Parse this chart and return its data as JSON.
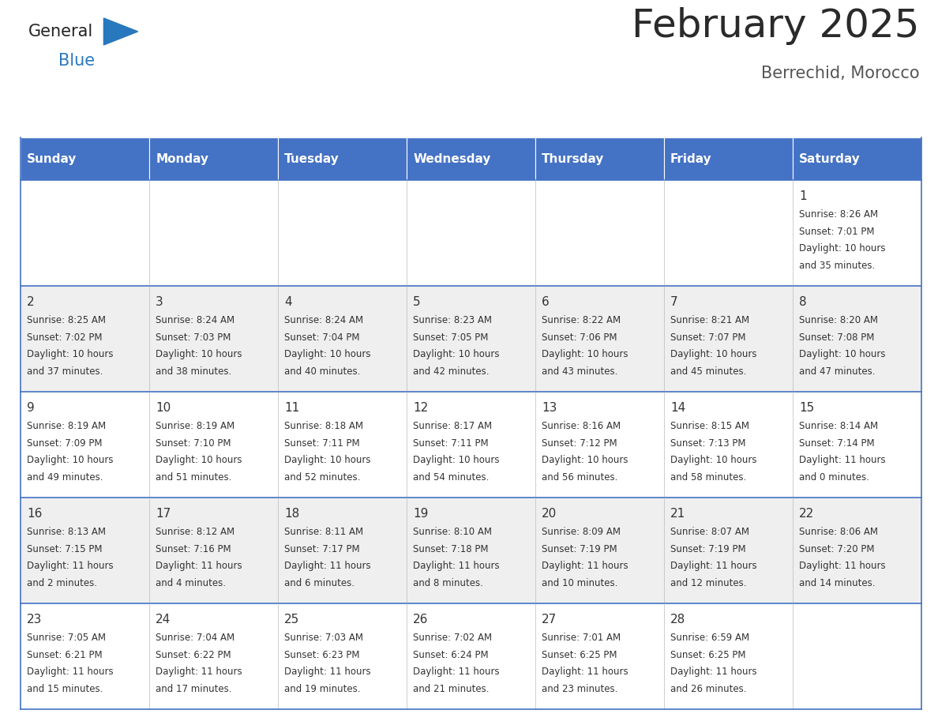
{
  "title": "February 2025",
  "subtitle": "Berrechid, Morocco",
  "header_color": "#4472C4",
  "header_text_color": "#FFFFFF",
  "days_of_week": [
    "Sunday",
    "Monday",
    "Tuesday",
    "Wednesday",
    "Thursday",
    "Friday",
    "Saturday"
  ],
  "background_color": "#FFFFFF",
  "cell_bg_even": "#EFEFEF",
  "cell_bg_odd": "#FFFFFF",
  "border_color": "#4472C4",
  "text_color": "#333333",
  "calendar_data": [
    [
      null,
      null,
      null,
      null,
      null,
      null,
      {
        "day": 1,
        "sunrise": "8:26 AM",
        "sunset": "7:01 PM",
        "daylight_line1": "Daylight: 10 hours",
        "daylight_line2": "and 35 minutes."
      }
    ],
    [
      {
        "day": 2,
        "sunrise": "8:25 AM",
        "sunset": "7:02 PM",
        "daylight_line1": "Daylight: 10 hours",
        "daylight_line2": "and 37 minutes."
      },
      {
        "day": 3,
        "sunrise": "8:24 AM",
        "sunset": "7:03 PM",
        "daylight_line1": "Daylight: 10 hours",
        "daylight_line2": "and 38 minutes."
      },
      {
        "day": 4,
        "sunrise": "8:24 AM",
        "sunset": "7:04 PM",
        "daylight_line1": "Daylight: 10 hours",
        "daylight_line2": "and 40 minutes."
      },
      {
        "day": 5,
        "sunrise": "8:23 AM",
        "sunset": "7:05 PM",
        "daylight_line1": "Daylight: 10 hours",
        "daylight_line2": "and 42 minutes."
      },
      {
        "day": 6,
        "sunrise": "8:22 AM",
        "sunset": "7:06 PM",
        "daylight_line1": "Daylight: 10 hours",
        "daylight_line2": "and 43 minutes."
      },
      {
        "day": 7,
        "sunrise": "8:21 AM",
        "sunset": "7:07 PM",
        "daylight_line1": "Daylight: 10 hours",
        "daylight_line2": "and 45 minutes."
      },
      {
        "day": 8,
        "sunrise": "8:20 AM",
        "sunset": "7:08 PM",
        "daylight_line1": "Daylight: 10 hours",
        "daylight_line2": "and 47 minutes."
      }
    ],
    [
      {
        "day": 9,
        "sunrise": "8:19 AM",
        "sunset": "7:09 PM",
        "daylight_line1": "Daylight: 10 hours",
        "daylight_line2": "and 49 minutes."
      },
      {
        "day": 10,
        "sunrise": "8:19 AM",
        "sunset": "7:10 PM",
        "daylight_line1": "Daylight: 10 hours",
        "daylight_line2": "and 51 minutes."
      },
      {
        "day": 11,
        "sunrise": "8:18 AM",
        "sunset": "7:11 PM",
        "daylight_line1": "Daylight: 10 hours",
        "daylight_line2": "and 52 minutes."
      },
      {
        "day": 12,
        "sunrise": "8:17 AM",
        "sunset": "7:11 PM",
        "daylight_line1": "Daylight: 10 hours",
        "daylight_line2": "and 54 minutes."
      },
      {
        "day": 13,
        "sunrise": "8:16 AM",
        "sunset": "7:12 PM",
        "daylight_line1": "Daylight: 10 hours",
        "daylight_line2": "and 56 minutes."
      },
      {
        "day": 14,
        "sunrise": "8:15 AM",
        "sunset": "7:13 PM",
        "daylight_line1": "Daylight: 10 hours",
        "daylight_line2": "and 58 minutes."
      },
      {
        "day": 15,
        "sunrise": "8:14 AM",
        "sunset": "7:14 PM",
        "daylight_line1": "Daylight: 11 hours",
        "daylight_line2": "and 0 minutes."
      }
    ],
    [
      {
        "day": 16,
        "sunrise": "8:13 AM",
        "sunset": "7:15 PM",
        "daylight_line1": "Daylight: 11 hours",
        "daylight_line2": "and 2 minutes."
      },
      {
        "day": 17,
        "sunrise": "8:12 AM",
        "sunset": "7:16 PM",
        "daylight_line1": "Daylight: 11 hours",
        "daylight_line2": "and 4 minutes."
      },
      {
        "day": 18,
        "sunrise": "8:11 AM",
        "sunset": "7:17 PM",
        "daylight_line1": "Daylight: 11 hours",
        "daylight_line2": "and 6 minutes."
      },
      {
        "day": 19,
        "sunrise": "8:10 AM",
        "sunset": "7:18 PM",
        "daylight_line1": "Daylight: 11 hours",
        "daylight_line2": "and 8 minutes."
      },
      {
        "day": 20,
        "sunrise": "8:09 AM",
        "sunset": "7:19 PM",
        "daylight_line1": "Daylight: 11 hours",
        "daylight_line2": "and 10 minutes."
      },
      {
        "day": 21,
        "sunrise": "8:07 AM",
        "sunset": "7:19 PM",
        "daylight_line1": "Daylight: 11 hours",
        "daylight_line2": "and 12 minutes."
      },
      {
        "day": 22,
        "sunrise": "8:06 AM",
        "sunset": "7:20 PM",
        "daylight_line1": "Daylight: 11 hours",
        "daylight_line2": "and 14 minutes."
      }
    ],
    [
      {
        "day": 23,
        "sunrise": "7:05 AM",
        "sunset": "6:21 PM",
        "daylight_line1": "Daylight: 11 hours",
        "daylight_line2": "and 15 minutes."
      },
      {
        "day": 24,
        "sunrise": "7:04 AM",
        "sunset": "6:22 PM",
        "daylight_line1": "Daylight: 11 hours",
        "daylight_line2": "and 17 minutes."
      },
      {
        "day": 25,
        "sunrise": "7:03 AM",
        "sunset": "6:23 PM",
        "daylight_line1": "Daylight: 11 hours",
        "daylight_line2": "and 19 minutes."
      },
      {
        "day": 26,
        "sunrise": "7:02 AM",
        "sunset": "6:24 PM",
        "daylight_line1": "Daylight: 11 hours",
        "daylight_line2": "and 21 minutes."
      },
      {
        "day": 27,
        "sunrise": "7:01 AM",
        "sunset": "6:25 PM",
        "daylight_line1": "Daylight: 11 hours",
        "daylight_line2": "and 23 minutes."
      },
      {
        "day": 28,
        "sunrise": "6:59 AM",
        "sunset": "6:25 PM",
        "daylight_line1": "Daylight: 11 hours",
        "daylight_line2": "and 26 minutes."
      },
      null
    ]
  ],
  "logo_color1": "#222222",
  "logo_color2": "#2878BE",
  "logo_triangle_color": "#2878BE",
  "title_fontsize": 36,
  "subtitle_fontsize": 15,
  "header_fontsize": 11,
  "day_num_fontsize": 11,
  "info_fontsize": 8.5
}
